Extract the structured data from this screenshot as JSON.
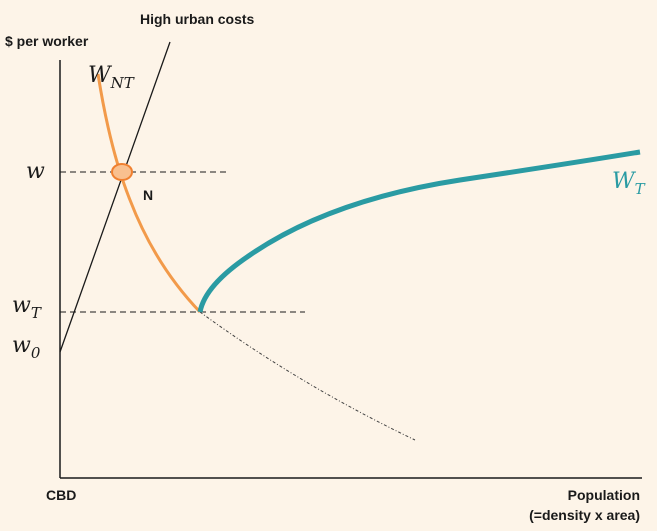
{
  "axis": {
    "y_label": "$ per worker",
    "origin_label": "CBD",
    "x_label": "Population",
    "x_label_note": "(=density x area)"
  },
  "curves": {
    "urban_costs": "High urban costs",
    "wnt": {
      "main": "W",
      "sub": "NT"
    },
    "wt": {
      "main": "W",
      "sub": "T"
    }
  },
  "levels": {
    "w": "w",
    "wt": {
      "main": "w",
      "sub": "T"
    },
    "w0": {
      "main": "w",
      "sub": "0"
    }
  },
  "point": "N"
}
